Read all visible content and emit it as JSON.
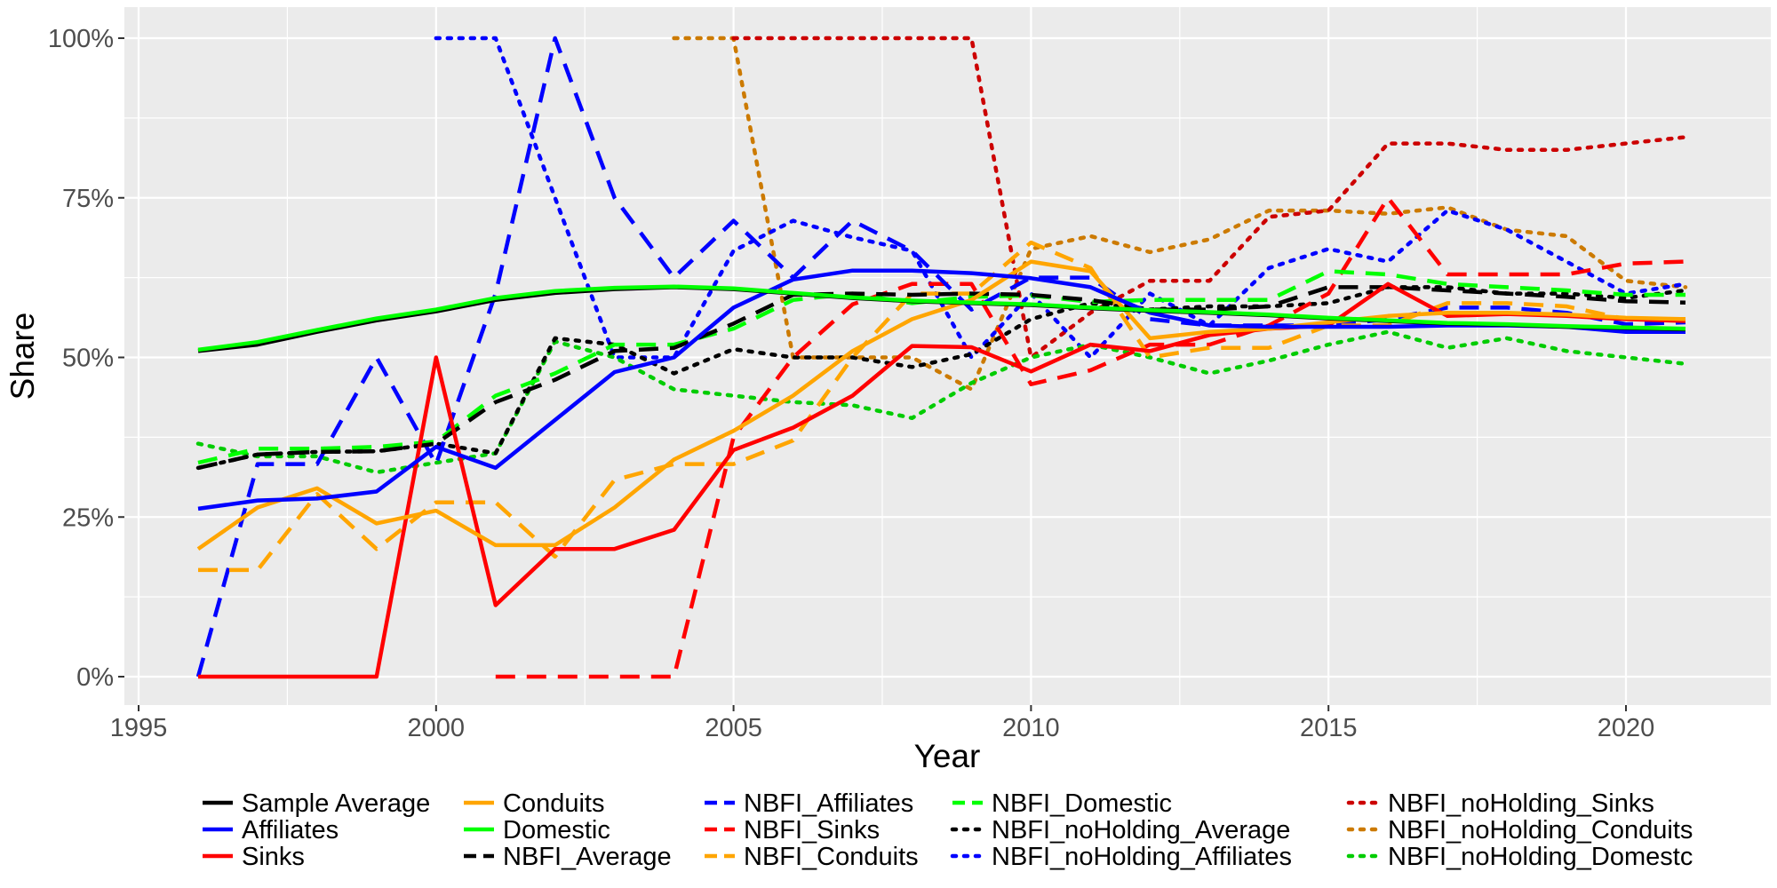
{
  "chart_data": {
    "type": "line",
    "xlabel": "Year",
    "ylabel": "Share",
    "xlim": [
      1995,
      2022
    ],
    "ylim": [
      -0.05,
      1.03
    ],
    "x_ticks": [
      1995,
      2000,
      2005,
      2010,
      2015,
      2020
    ],
    "y_ticks": [
      0,
      0.25,
      0.5,
      0.75,
      1.0
    ],
    "y_tick_labels": [
      "0%",
      "25%",
      "50%",
      "75%",
      "100%"
    ],
    "grid": true,
    "legend_position": "bottom",
    "series": [
      {
        "name": "Sample Average",
        "color": "#000000",
        "style": "solid",
        "x": [
          1996,
          1997,
          1998,
          1999,
          2000,
          2001,
          2002,
          2003,
          2004,
          2005,
          2006,
          2007,
          2008,
          2009,
          2010,
          2011,
          2012,
          2013,
          2014,
          2015,
          2016,
          2017,
          2018,
          2019,
          2020,
          2021
        ],
        "y": [
          0.51,
          0.52,
          0.54,
          0.558,
          0.572,
          0.59,
          0.601,
          0.607,
          0.61,
          0.607,
          0.6,
          0.593,
          0.588,
          0.585,
          0.582,
          0.577,
          0.573,
          0.57,
          0.566,
          0.561,
          0.557,
          0.553,
          0.551,
          0.548,
          0.546,
          0.544
        ]
      },
      {
        "name": "Affiliates",
        "color": "#0000ff",
        "style": "solid",
        "x": [
          1996,
          1997,
          1998,
          1999,
          2000,
          2001,
          2002,
          2003,
          2004,
          2005,
          2006,
          2007,
          2008,
          2009,
          2010,
          2011,
          2012,
          2013,
          2014,
          2015,
          2016,
          2017,
          2018,
          2019,
          2020,
          2021
        ],
        "y": [
          0.263,
          0.276,
          0.279,
          0.29,
          0.36,
          0.327,
          0.402,
          0.477,
          0.5,
          0.578,
          0.622,
          0.636,
          0.636,
          0.632,
          0.624,
          0.61,
          0.57,
          0.55,
          0.548,
          0.548,
          0.548,
          0.55,
          0.55,
          0.548,
          0.54,
          0.54
        ]
      },
      {
        "name": "Sinks",
        "color": "#ff0000",
        "style": "solid",
        "x": [
          1996,
          1997,
          1998,
          1999,
          2000,
          2001,
          2002,
          2003,
          2004,
          2005,
          2006,
          2007,
          2008,
          2009,
          2010,
          2011,
          2012,
          2013,
          2014,
          2015,
          2016,
          2017,
          2018,
          2019,
          2020,
          2021
        ],
        "y": [
          0,
          0,
          0,
          0,
          0.5,
          0.112,
          0.2,
          0.2,
          0.23,
          0.355,
          0.39,
          0.44,
          0.518,
          0.516,
          0.478,
          0.52,
          0.51,
          0.535,
          0.545,
          0.55,
          0.615,
          0.565,
          0.568,
          0.565,
          0.56,
          0.557
        ]
      },
      {
        "name": "Conduits",
        "color": "#ffa500",
        "style": "solid",
        "x": [
          1996,
          1997,
          1998,
          1999,
          2000,
          2001,
          2002,
          2003,
          2004,
          2005,
          2006,
          2007,
          2008,
          2009,
          2010,
          2011,
          2012,
          2013,
          2014,
          2015,
          2016,
          2017,
          2018,
          2019,
          2020,
          2021
        ],
        "y": [
          0.2,
          0.265,
          0.295,
          0.24,
          0.26,
          0.206,
          0.206,
          0.265,
          0.34,
          0.385,
          0.44,
          0.51,
          0.56,
          0.59,
          0.65,
          0.635,
          0.53,
          0.54,
          0.545,
          0.555,
          0.565,
          0.57,
          0.57,
          0.567,
          0.562,
          0.56
        ]
      },
      {
        "name": "Domestic",
        "color": "#00ff00",
        "style": "solid",
        "x": [
          1996,
          1997,
          1998,
          1999,
          2000,
          2001,
          2002,
          2003,
          2004,
          2005,
          2006,
          2007,
          2008,
          2009,
          2010,
          2011,
          2012,
          2013,
          2014,
          2015,
          2016,
          2017,
          2018,
          2019,
          2020,
          2021
        ],
        "y": [
          0.512,
          0.524,
          0.543,
          0.561,
          0.575,
          0.593,
          0.604,
          0.609,
          0.611,
          0.608,
          0.601,
          0.594,
          0.589,
          0.586,
          0.583,
          0.578,
          0.574,
          0.571,
          0.567,
          0.562,
          0.558,
          0.554,
          0.552,
          0.549,
          0.547,
          0.545
        ]
      },
      {
        "name": "NBFI_Average",
        "color": "#000000",
        "style": "dashed",
        "x": [
          1996,
          1997,
          1998,
          1999,
          2000,
          2001,
          2002,
          2003,
          2004,
          2005,
          2006,
          2007,
          2008,
          2009,
          2010,
          2011,
          2012,
          2013,
          2014,
          2015,
          2016,
          2017,
          2018,
          2019,
          2020,
          2021
        ],
        "y": [
          0.327,
          0.348,
          0.352,
          0.353,
          0.365,
          0.43,
          0.465,
          0.51,
          0.515,
          0.553,
          0.598,
          0.6,
          0.598,
          0.6,
          0.598,
          0.59,
          0.575,
          0.575,
          0.58,
          0.61,
          0.61,
          0.605,
          0.6,
          0.595,
          0.588,
          0.586
        ]
      },
      {
        "name": "NBFI_Affiliates",
        "color": "#0000ff",
        "style": "dashed",
        "x": [
          1996,
          1997,
          1998,
          1999,
          2000,
          2001,
          2002,
          2003,
          2004,
          2005,
          2006,
          2007,
          2008,
          2009,
          2010,
          2011,
          2012,
          2013,
          2014,
          2015,
          2016,
          2017,
          2018,
          2019,
          2020,
          2021
        ],
        "y": [
          0,
          0.333,
          0.333,
          0.5,
          0.333,
          0.6,
          1.0,
          0.75,
          0.625,
          0.714,
          0.625,
          0.714,
          0.667,
          0.575,
          0.625,
          0.625,
          0.56,
          0.55,
          0.55,
          0.55,
          0.56,
          0.578,
          0.578,
          0.57,
          0.552,
          0.555
        ]
      },
      {
        "name": "NBFI_Sinks",
        "color": "#ff0000",
        "style": "dashed",
        "x": [
          2001,
          2002,
          2003,
          2004,
          2005,
          2006,
          2007,
          2008,
          2009,
          2010,
          2011,
          2012,
          2013,
          2014,
          2015,
          2016,
          2017,
          2018,
          2019,
          2020,
          2021
        ],
        "y": [
          0,
          0,
          0,
          0,
          0.375,
          0.5,
          0.583,
          0.615,
          0.615,
          0.458,
          0.48,
          0.52,
          0.52,
          0.55,
          0.6,
          0.75,
          0.63,
          0.63,
          0.63,
          0.647,
          0.65
        ]
      },
      {
        "name": "NBFI_Conduits",
        "color": "#ffa500",
        "style": "dashed",
        "x": [
          1996,
          1997,
          1998,
          1999,
          2000,
          2001,
          2002,
          2003,
          2004,
          2005,
          2006,
          2007,
          2008,
          2009,
          2010,
          2011,
          2012,
          2013,
          2014,
          2015,
          2016,
          2017,
          2018,
          2019,
          2020,
          2021
        ],
        "y": [
          0.167,
          0.167,
          0.286,
          0.2,
          0.273,
          0.273,
          0.188,
          0.308,
          0.333,
          0.333,
          0.37,
          0.5,
          0.6,
          0.6,
          0.68,
          0.64,
          0.5,
          0.515,
          0.515,
          0.55,
          0.55,
          0.585,
          0.585,
          0.58,
          0.56,
          0.56
        ]
      },
      {
        "name": "NBFI_Domestic",
        "color": "#00ff00",
        "style": "dashed",
        "x": [
          1996,
          1997,
          1998,
          1999,
          2000,
          2001,
          2002,
          2003,
          2004,
          2005,
          2006,
          2007,
          2008,
          2009,
          2010,
          2011,
          2012,
          2013,
          2014,
          2015,
          2016,
          2017,
          2018,
          2019,
          2020,
          2021
        ],
        "y": [
          0.335,
          0.357,
          0.357,
          0.36,
          0.368,
          0.44,
          0.475,
          0.52,
          0.52,
          0.545,
          0.59,
          0.6,
          0.585,
          0.595,
          0.597,
          0.587,
          0.59,
          0.59,
          0.59,
          0.635,
          0.63,
          0.615,
          0.61,
          0.605,
          0.598,
          0.598
        ]
      },
      {
        "name": "NBFI_noHolding_Average",
        "color": "#000000",
        "style": "dotted",
        "x": [
          1996,
          1997,
          1998,
          1999,
          2000,
          2001,
          2002,
          2003,
          2004,
          2005,
          2006,
          2007,
          2008,
          2009,
          2010,
          2011,
          2012,
          2013,
          2014,
          2015,
          2016,
          2017,
          2018,
          2019,
          2020,
          2021
        ],
        "y": [
          0.327,
          0.348,
          0.352,
          0.353,
          0.365,
          0.35,
          0.53,
          0.52,
          0.475,
          0.513,
          0.5,
          0.5,
          0.485,
          0.505,
          0.56,
          0.585,
          0.575,
          0.58,
          0.58,
          0.585,
          0.61,
          0.61,
          0.6,
          0.6,
          0.593,
          0.605
        ]
      },
      {
        "name": "NBFI_noHolding_Affiliates",
        "color": "#0000ff",
        "style": "dotted",
        "x": [
          2000,
          2001,
          2002,
          2003,
          2004,
          2005,
          2006,
          2007,
          2008,
          2009,
          2010,
          2011,
          2012,
          2013,
          2014,
          2015,
          2016,
          2017,
          2018,
          2019,
          2020,
          2021
        ],
        "y": [
          1.0,
          1.0,
          0.75,
          0.5,
          0.5,
          0.667,
          0.714,
          0.688,
          0.667,
          0.5,
          0.6,
          0.5,
          0.6,
          0.55,
          0.64,
          0.67,
          0.65,
          0.73,
          0.7,
          0.65,
          0.6,
          0.615
        ]
      },
      {
        "name": "NBFI_noHolding_Domestc",
        "color": "#00cc00",
        "style": "dotted",
        "x": [
          1996,
          1997,
          1998,
          1999,
          2000,
          2001,
          2002,
          2003,
          2004,
          2005,
          2006,
          2007,
          2008,
          2009,
          2010,
          2011,
          2012,
          2013,
          2014,
          2015,
          2016,
          2017,
          2018,
          2019,
          2020,
          2021
        ],
        "y": [
          0.365,
          0.345,
          0.345,
          0.32,
          0.335,
          0.35,
          0.525,
          0.5,
          0.45,
          0.44,
          0.43,
          0.425,
          0.405,
          0.46,
          0.5,
          0.52,
          0.5,
          0.475,
          0.495,
          0.52,
          0.54,
          0.515,
          0.53,
          0.51,
          0.5,
          0.49
        ]
      },
      {
        "name": "NBFI_noHolding_Sinks",
        "color": "#cc0000",
        "style": "dotted",
        "x": [
          2005,
          2006,
          2007,
          2008,
          2009,
          2010,
          2011,
          2012,
          2013,
          2014,
          2015,
          2016,
          2017,
          2018,
          2019,
          2020,
          2021
        ],
        "y": [
          1.0,
          1.0,
          1.0,
          1.0,
          1.0,
          0.5,
          0.57,
          0.62,
          0.62,
          0.72,
          0.73,
          0.835,
          0.835,
          0.825,
          0.825,
          0.835,
          0.845
        ]
      },
      {
        "name": "NBFI_noHolding_Conduits",
        "color": "#cc7a00",
        "style": "dotted",
        "x": [
          2004,
          2005,
          2006,
          2007,
          2008,
          2009,
          2010,
          2011,
          2012,
          2013,
          2014,
          2015,
          2016,
          2017,
          2018,
          2019,
          2020,
          2021
        ],
        "y": [
          1.0,
          1.0,
          0.5,
          0.5,
          0.5,
          0.45,
          0.67,
          0.69,
          0.665,
          0.685,
          0.73,
          0.73,
          0.725,
          0.735,
          0.7,
          0.69,
          0.62,
          0.61
        ]
      }
    ],
    "legend": {
      "columns": [
        [
          "Sample Average",
          "Affiliates",
          "Sinks"
        ],
        [
          "Conduits",
          "Domestic",
          "NBFI_Average"
        ],
        [
          "NBFI_Affiliates",
          "NBFI_Sinks",
          "NBFI_Conduits"
        ],
        [
          "NBFI_Domestic",
          "NBFI_noHolding_Average",
          "NBFI_noHolding_Affiliates"
        ],
        [
          "NBFI_noHolding_Sinks",
          "NBFI_noHolding_Conduits",
          "NBFI_noHolding_Domestc"
        ]
      ]
    }
  }
}
